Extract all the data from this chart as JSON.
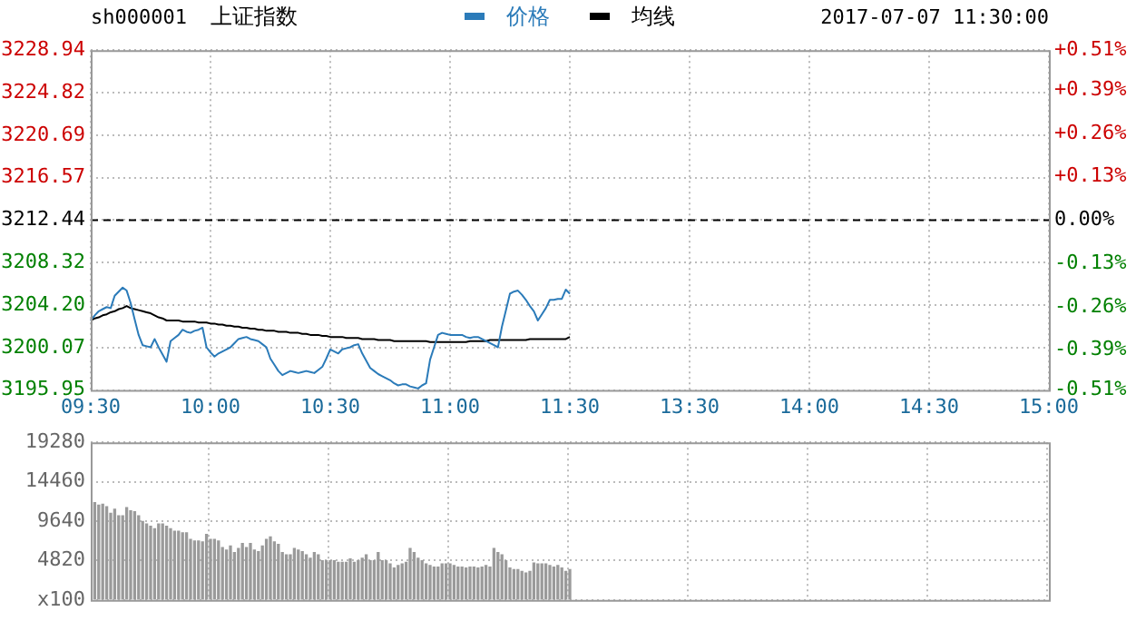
{
  "chart_data": [
    {
      "type": "line",
      "title": "上证指数",
      "annotations": [
        "sh000001",
        "2017-07-07 11:30:00"
      ],
      "legend": "top",
      "grid": true,
      "marker": "none",
      "line_style": "solid",
      "categories": [
        "09:30",
        null,
        null,
        null,
        null,
        null,
        null,
        null,
        null,
        null,
        null,
        null,
        null,
        null,
        null,
        null,
        null,
        null,
        null,
        null,
        null,
        null,
        null,
        null,
        null,
        null,
        null,
        null,
        null,
        null,
        "10:00",
        null,
        null,
        null,
        null,
        null,
        null,
        null,
        null,
        null,
        null,
        null,
        null,
        null,
        null,
        null,
        null,
        null,
        null,
        null,
        null,
        null,
        null,
        null,
        null,
        null,
        null,
        null,
        null,
        null,
        "10:30",
        null,
        null,
        null,
        null,
        null,
        null,
        null,
        null,
        null,
        null,
        null,
        null,
        null,
        null,
        null,
        null,
        null,
        null,
        null,
        null,
        null,
        null,
        null,
        null,
        null,
        null,
        null,
        null,
        null,
        "11:00",
        null,
        null,
        null,
        null,
        null,
        null,
        null,
        null,
        null,
        null,
        null,
        null,
        null,
        null,
        null,
        null,
        null,
        null,
        null,
        null,
        null,
        null,
        null,
        null,
        null,
        null,
        null,
        null,
        null,
        "11:30",
        null,
        null,
        null,
        null,
        null,
        null,
        null,
        null,
        null,
        null,
        null,
        null,
        null,
        null,
        null,
        null,
        null,
        null,
        null,
        null,
        null,
        null,
        null,
        null,
        null,
        null,
        null,
        null,
        null,
        "13:30",
        null,
        null,
        null,
        null,
        null,
        null,
        null,
        null,
        null,
        null,
        null,
        null,
        null,
        null,
        null,
        null,
        null,
        null,
        null,
        null,
        null,
        null,
        null,
        null,
        null,
        null,
        null,
        null,
        null,
        "14:00",
        null,
        null,
        null,
        null,
        null,
        null,
        null,
        null,
        null,
        null,
        null,
        null,
        null,
        null,
        null,
        null,
        null,
        null,
        null,
        null,
        null,
        null,
        null,
        null,
        null,
        null,
        null,
        null,
        null,
        "14:30",
        null,
        null,
        null,
        null,
        null,
        null,
        null,
        null,
        null,
        null,
        null,
        null,
        null,
        null,
        null,
        null,
        null,
        null,
        null,
        null,
        null,
        null,
        null,
        null,
        null,
        null,
        null,
        null,
        null,
        "15:00"
      ],
      "ylim": [
        3195.95,
        3228.94
      ],
      "yticks": [
        3195.95,
        3200.07,
        {
          "value": 3204.2,
          "label": "3204.20"
        },
        3208.32,
        3212.44,
        3216.57,
        3220.69,
        3224.82,
        3228.94
      ],
      "y2lim": [
        -0.51,
        0.51
      ],
      "y2ticks": [
        {
          "value": -0.51,
          "label": "-0.51%"
        },
        {
          "value": -0.39,
          "label": "-0.39%"
        },
        {
          "value": -0.26,
          "label": "-0.26%"
        },
        {
          "value": -0.13,
          "label": "-0.13%"
        },
        {
          "value": 0,
          "label": "0.00%"
        },
        {
          "value": 0.13,
          "label": "+0.13%"
        },
        {
          "value": 0.26,
          "label": "+0.26%"
        },
        {
          "value": 0.39,
          "label": "+0.39%"
        },
        {
          "value": 0.51,
          "label": "+0.51%"
        }
      ],
      "ref_lines": [
        {
          "axis": "y",
          "value": 3212.44,
          "color": "#000000",
          "line_style": "dashed"
        }
      ],
      "series": [
        {
          "name": "价格",
          "color": "#2b7bb9",
          "values": [
            3202.7,
            3203.2,
            3203.6,
            3203.8,
            3204.0,
            3203.9,
            3205.1,
            3205.5,
            3205.9,
            3205.6,
            3204.4,
            3202.8,
            3201.3,
            3200.3,
            3200.2,
            3200.1,
            3200.9,
            3200.1,
            3199.4,
            3198.7,
            3200.7,
            3201.0,
            3201.3,
            3201.8,
            3201.6,
            3201.5,
            3201.7,
            3201.8,
            3202.0,
            3200.1,
            3199.6,
            3199.2,
            3199.5,
            3199.7,
            3199.9,
            3200.1,
            3200.5,
            3200.9,
            3201.0,
            3201.1,
            3200.9,
            3200.8,
            3200.7,
            3200.4,
            3200.1,
            3199.0,
            3198.4,
            3197.8,
            3197.4,
            3197.6,
            3197.8,
            3197.7,
            3197.6,
            3197.7,
            3197.8,
            3197.7,
            3197.6,
            3197.9,
            3198.2,
            3199.0,
            3199.9,
            3199.7,
            3199.5,
            3199.9,
            3200.0,
            3200.1,
            3200.3,
            3200.4,
            3199.5,
            3198.8,
            3198.1,
            3197.8,
            3197.5,
            3197.3,
            3197.1,
            3196.9,
            3196.6,
            3196.4,
            3196.5,
            3196.5,
            3196.3,
            3196.2,
            3196.1,
            3196.4,
            3196.6,
            3198.9,
            3200.1,
            3201.3,
            3201.5,
            3201.4,
            3201.3,
            3201.3,
            3201.3,
            3201.3,
            3201.1,
            3201.0,
            3201.1,
            3201.1,
            3200.9,
            3200.7,
            3200.5,
            3200.3,
            3200.1,
            3202.1,
            3203.7,
            3205.3,
            3205.5,
            3205.6,
            3205.2,
            3204.7,
            3204.1,
            3203.6,
            3202.7,
            3203.3,
            3203.9,
            3204.7,
            3204.7,
            3204.8,
            3204.8,
            3205.7,
            3205.3,
            null,
            null,
            null,
            null,
            null,
            null,
            null,
            null,
            null,
            null,
            null,
            null,
            null,
            null,
            null,
            null,
            null,
            null,
            null,
            null,
            null,
            null,
            null,
            null,
            null,
            null,
            null,
            null,
            null,
            null,
            null,
            null,
            null,
            null,
            null,
            null,
            null,
            null,
            null,
            null,
            null,
            null,
            null,
            null,
            null,
            null,
            null,
            null,
            null,
            null,
            null,
            null,
            null,
            null,
            null,
            null,
            null,
            null,
            null,
            null,
            null,
            null,
            null,
            null,
            null,
            null,
            null,
            null,
            null,
            null,
            null,
            null,
            null,
            null,
            null,
            null,
            null,
            null,
            null,
            null,
            null,
            null,
            null,
            null,
            null,
            null,
            null,
            null,
            null,
            null,
            null,
            null,
            null,
            null,
            null,
            null,
            null,
            null,
            null,
            null,
            null,
            null,
            null,
            null,
            null,
            null,
            null,
            null,
            null,
            null,
            null,
            null,
            null,
            null,
            null,
            null,
            null,
            null,
            null,
            null
          ]
        },
        {
          "name": "均线",
          "color": "#000000",
          "values": [
            3202.7,
            3202.9,
            3203.0,
            3203.2,
            3203.3,
            3203.5,
            3203.6,
            3203.8,
            3203.9,
            3204.1,
            3203.9,
            3203.8,
            3203.7,
            3203.6,
            3203.5,
            3203.4,
            3203.2,
            3203.0,
            3202.9,
            3202.7,
            3202.7,
            3202.7,
            3202.7,
            3202.6,
            3202.6,
            3202.6,
            3202.6,
            3202.5,
            3202.5,
            3202.5,
            3202.4,
            3202.4,
            3202.3,
            3202.3,
            3202.2,
            3202.2,
            3202.1,
            3202.1,
            3202.0,
            3202.0,
            3201.9,
            3201.9,
            3201.8,
            3201.8,
            3201.7,
            3201.7,
            3201.7,
            3201.6,
            3201.6,
            3201.6,
            3201.5,
            3201.5,
            3201.5,
            3201.4,
            3201.4,
            3201.3,
            3201.3,
            3201.3,
            3201.2,
            3201.2,
            3201.1,
            3201.1,
            3201.1,
            3201.1,
            3201.0,
            3201.0,
            3201.0,
            3201.0,
            3200.9,
            3200.9,
            3200.9,
            3200.9,
            3200.8,
            3200.8,
            3200.8,
            3200.8,
            3200.7,
            3200.7,
            3200.7,
            3200.7,
            3200.7,
            3200.7,
            3200.7,
            3200.7,
            3200.7,
            3200.6,
            3200.6,
            3200.6,
            3200.6,
            3200.6,
            3200.6,
            3200.6,
            3200.6,
            3200.6,
            3200.6,
            3200.7,
            3200.7,
            3200.7,
            3200.7,
            3200.7,
            3200.8,
            3200.8,
            3200.8,
            3200.8,
            3200.8,
            3200.8,
            3200.8,
            3200.8,
            3200.8,
            3200.8,
            3200.9,
            3200.9,
            3200.9,
            3200.9,
            3200.9,
            3200.9,
            3200.9,
            3200.9,
            3200.9,
            3200.9,
            3201.1,
            null,
            null,
            null,
            null,
            null,
            null,
            null,
            null,
            null,
            null,
            null,
            null,
            null,
            null,
            null,
            null,
            null,
            null,
            null,
            null,
            null,
            null,
            null,
            null,
            null,
            null,
            null,
            null,
            null,
            null,
            null,
            null,
            null,
            null,
            null,
            null,
            null,
            null,
            null,
            null,
            null,
            null,
            null,
            null,
            null,
            null,
            null,
            null,
            null,
            null,
            null,
            null,
            null,
            null,
            null,
            null,
            null,
            null,
            null,
            null,
            null,
            null,
            null,
            null,
            null,
            null,
            null,
            null,
            null,
            null,
            null,
            null,
            null,
            null,
            null,
            null,
            null,
            null,
            null,
            null,
            null,
            null,
            null,
            null,
            null,
            null,
            null,
            null,
            null,
            null,
            null,
            null,
            null,
            null,
            null,
            null,
            null,
            null,
            null,
            null,
            null,
            null,
            null,
            null,
            null,
            null,
            null,
            null,
            null,
            null,
            null,
            null,
            null,
            null,
            null,
            null,
            null,
            null,
            null,
            null
          ]
        }
      ]
    },
    {
      "type": "bar",
      "grid": true,
      "tick_labels": "y",
      "color": "#9a9a9a",
      "categories": [
        null,
        null,
        null,
        null,
        null,
        null,
        null,
        null,
        null,
        null,
        null,
        null,
        null,
        null,
        null,
        null,
        null,
        null,
        null,
        null,
        null,
        null,
        null,
        null,
        null,
        null,
        null,
        null,
        null,
        null,
        null,
        null,
        null,
        null,
        null,
        null,
        null,
        null,
        null,
        null,
        null,
        null,
        null,
        null,
        null,
        null,
        null,
        null,
        null,
        null,
        null,
        null,
        null,
        null,
        null,
        null,
        null,
        null,
        null,
        null,
        null,
        null,
        null,
        null,
        null,
        null,
        null,
        null,
        null,
        null,
        null,
        null,
        null,
        null,
        null,
        null,
        null,
        null,
        null,
        null,
        null,
        null,
        null,
        null,
        null,
        null,
        null,
        null,
        null,
        null,
        null,
        null,
        null,
        null,
        null,
        null,
        null,
        null,
        null,
        null,
        null,
        null,
        null,
        null,
        null,
        null,
        null,
        null,
        null,
        null,
        null,
        null,
        null,
        null,
        null,
        null,
        null,
        null,
        null,
        null,
        null,
        null,
        null,
        null,
        null,
        null,
        null,
        null,
        null,
        null,
        null,
        null,
        null,
        null,
        null,
        null,
        null,
        null,
        null,
        null,
        null,
        null,
        null,
        null,
        null,
        null,
        null,
        null,
        null,
        null,
        null,
        null,
        null,
        null,
        null,
        null,
        null,
        null,
        null,
        null,
        null,
        null,
        null,
        null,
        null,
        null,
        null,
        null,
        null,
        null,
        null,
        null,
        null,
        null,
        null,
        null,
        null,
        null,
        null,
        null,
        null,
        null,
        null,
        null,
        null,
        null,
        null,
        null,
        null,
        null,
        null,
        null,
        null,
        null,
        null,
        null,
        null,
        null,
        null,
        null,
        null,
        null,
        null,
        null,
        null,
        null,
        null,
        null,
        null,
        null,
        null,
        null,
        null,
        null,
        null,
        null,
        null,
        null,
        null,
        null,
        null,
        null,
        null,
        null,
        null,
        null,
        null,
        null,
        null,
        null,
        null,
        null,
        null,
        null,
        null,
        null,
        null,
        null,
        null,
        null,
        null
      ],
      "ylim": [
        0,
        19280
      ],
      "yticks": [
        {
          "value": 0,
          "label": "x100"
        },
        4820,
        9640,
        14460,
        19280
      ],
      "values": [
        null,
        11900,
        11600,
        11700,
        11400,
        10600,
        11100,
        10300,
        10300,
        11300,
        10900,
        10800,
        10300,
        9600,
        9300,
        9000,
        8700,
        9300,
        9300,
        9000,
        8700,
        8400,
        8400,
        8200,
        8200,
        7400,
        7200,
        7200,
        7100,
        8000,
        7400,
        7400,
        7200,
        6400,
        6100,
        6600,
        5800,
        6300,
        6900,
        6400,
        6900,
        6100,
        5900,
        6600,
        7400,
        7700,
        7100,
        6800,
        5800,
        5500,
        5500,
        6300,
        6100,
        5900,
        5500,
        5100,
        5800,
        5500,
        4800,
        4800,
        4800,
        4800,
        4600,
        4600,
        4600,
        5000,
        4600,
        4800,
        5100,
        5500,
        4800,
        4800,
        5800,
        4800,
        4800,
        4400,
        3900,
        4200,
        4400,
        4600,
        6300,
        5800,
        5100,
        4800,
        4400,
        4200,
        4000,
        4000,
        4400,
        4400,
        4400,
        4200,
        4000,
        4000,
        3900,
        4000,
        4000,
        3900,
        4000,
        4200,
        4000,
        6300,
        5800,
        5500,
        4800,
        3900,
        3700,
        3700,
        3500,
        3300,
        3500,
        4500,
        4400,
        4400,
        4400,
        4200,
        4000,
        4200,
        3900,
        3500,
        3700,
        null,
        null,
        null,
        null,
        null,
        null,
        null,
        null,
        null,
        null,
        null,
        null,
        null,
        null,
        null,
        null,
        null,
        null,
        null,
        null,
        null,
        null,
        null,
        null,
        null,
        null,
        null,
        null,
        null,
        null,
        null,
        null,
        null,
        null,
        null,
        null,
        null,
        null,
        null,
        null,
        null,
        null,
        null,
        null,
        null,
        null,
        null,
        null,
        null,
        null,
        null,
        null,
        null,
        null,
        null,
        null,
        null,
        null,
        null,
        null,
        null,
        null,
        null,
        null,
        null,
        null,
        null,
        null,
        null,
        null,
        null,
        null,
        null,
        null,
        null,
        null,
        null,
        null,
        null,
        null,
        null,
        null,
        null,
        null,
        null,
        null,
        null,
        null,
        null,
        null,
        null,
        null,
        null,
        null,
        null,
        null,
        null,
        null,
        null,
        null,
        null,
        null,
        null,
        null,
        null,
        null,
        null,
        null,
        null,
        null,
        null,
        null,
        null,
        null,
        null,
        null,
        null,
        null,
        null,
        null
      ]
    }
  ]
}
